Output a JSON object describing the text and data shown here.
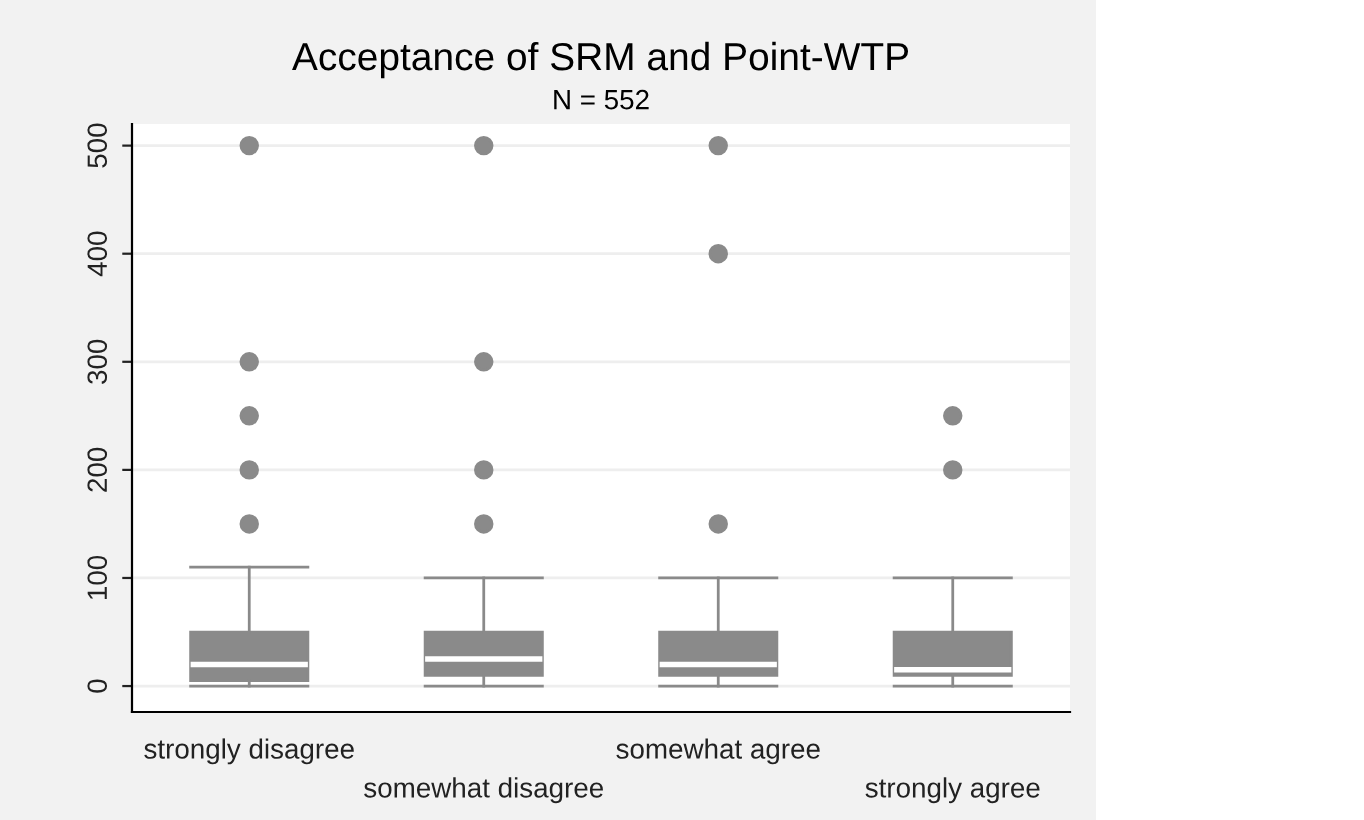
{
  "chart_data": {
    "type": "box",
    "title": "Acceptance of SRM and Point-WTP",
    "subtitle": "N = 552",
    "categories": [
      "strongly disagree",
      "somewhat disagree",
      "somewhat agree",
      "strongly agree"
    ],
    "boxes": [
      {
        "low": 0,
        "q1": 5,
        "median": 20,
        "q3": 50,
        "high": 110,
        "outliers": [
          150,
          200,
          250,
          300,
          500
        ]
      },
      {
        "low": 0,
        "q1": 10,
        "median": 25,
        "q3": 50,
        "high": 100,
        "outliers": [
          150,
          200,
          300,
          500
        ]
      },
      {
        "low": 0,
        "q1": 10,
        "median": 20,
        "q3": 50,
        "high": 100,
        "outliers": [
          150,
          400,
          500
        ]
      },
      {
        "low": 0,
        "q1": 10,
        "median": 15,
        "q3": 50,
        "high": 100,
        "outliers": [
          200,
          250
        ]
      }
    ],
    "color": "#8a8a8a",
    "ylim": [
      -24,
      520
    ],
    "yticks": [
      0,
      100,
      200,
      300,
      400,
      500
    ],
    "grid": "y",
    "legend": false
  }
}
